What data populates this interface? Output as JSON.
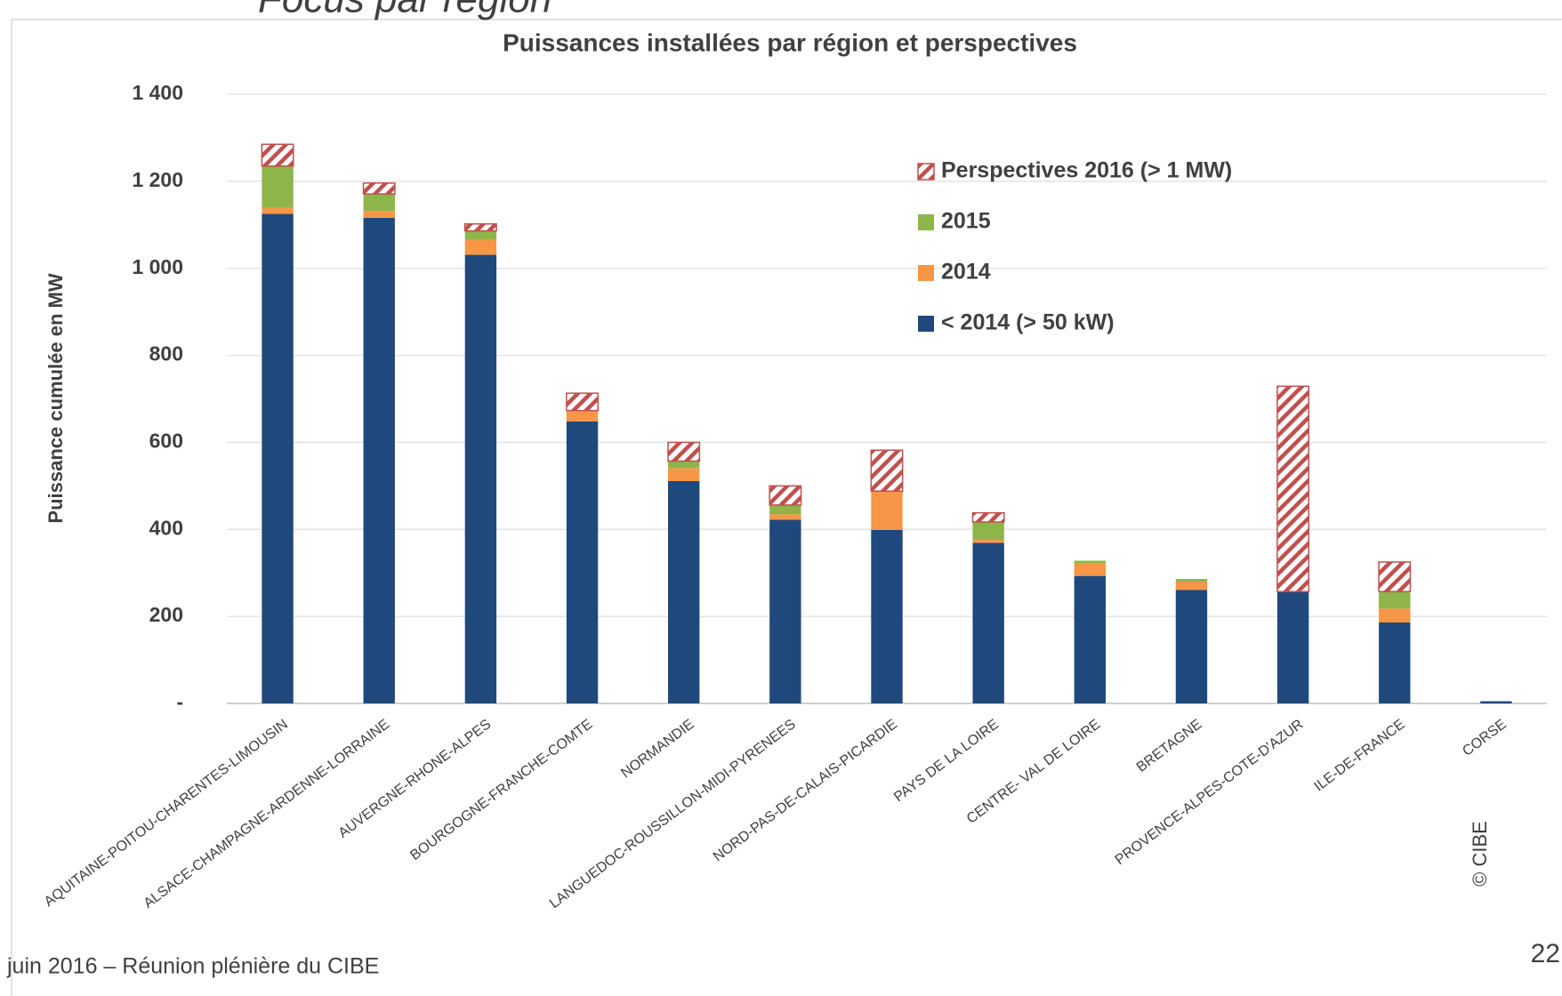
{
  "slide": {
    "heading": "Focus par région",
    "footer": "juin 2016 – Réunion plénière du CIBE",
    "page_number": "22",
    "copyright": "© CIBE"
  },
  "chart_data": {
    "type": "stacked_bar",
    "title": "Puissances installées par région et perspectives",
    "y_label": "Puissance cumulée en MW",
    "categories": [
      "AQUITAINE-POITOU-CHARENTES-LIMOUSIN",
      "ALSACE-CHAMPAGNE-ARDENNE-LORRAINE",
      "AUVERGNE-RHONE-ALPES",
      "BOURGOGNE-FRANCHE-COMTE",
      "NORMANDIE",
      "LANGUEDOC-ROUSSILLON-MIDI-PYRENEES",
      "NORD-PAS-DE-CALAIS-PICARDIE",
      "PAYS DE LA LOIRE",
      "CENTRE- VAL DE LOIRE",
      "BRETAGNE",
      "PROVENCE-ALPES-COTE-D'AZUR",
      "ILE-DE-FRANCE",
      "CORSE"
    ],
    "series": [
      {
        "name": "< 2014 (> 50 kW)",
        "color": "#1f497d",
        "values": [
          1125,
          1116,
          1031,
          648,
          511,
          422,
          399,
          369,
          293,
          261,
          257,
          186,
          5
        ]
      },
      {
        "name": "2014",
        "color": "#f79646",
        "values": [
          14,
          16,
          35,
          23,
          30,
          13,
          89,
          7,
          30,
          19,
          0,
          32,
          0
        ]
      },
      {
        "name": "2015",
        "color": "#8db54a",
        "values": [
          96,
          39,
          20,
          2,
          16,
          21,
          0,
          41,
          5,
          6,
          0,
          39,
          0
        ]
      },
      {
        "name": "Perspectives 2016 (>  1 MW)",
        "color": "#c0504d",
        "hatch": true,
        "values": [
          50,
          25,
          16,
          40,
          43,
          44,
          94,
          21,
          0,
          0,
          472,
          68,
          0
        ]
      }
    ],
    "ylim": [
      0,
      1400
    ],
    "yticks": [
      {
        "value": 0,
        "label": "-"
      },
      200,
      400,
      600,
      800,
      {
        "value": 1000,
        "label": "1 000"
      },
      {
        "value": 1200,
        "label": "1 200"
      },
      {
        "value": 1400,
        "label": "1 400"
      }
    ],
    "grid": true,
    "legend": "upper right"
  }
}
